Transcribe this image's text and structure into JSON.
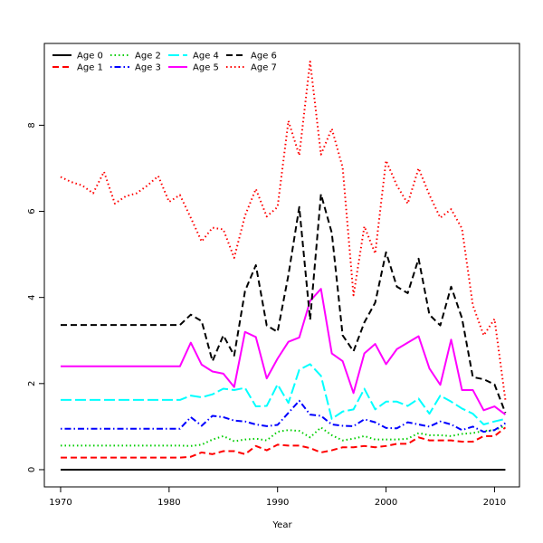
{
  "chart_data": {
    "type": "line",
    "title": "",
    "xlabel": "Year",
    "ylabel": "",
    "xlim": [
      1968.5,
      2012.3
    ],
    "ylim": [
      -0.4,
      9.9
    ],
    "xticks": [
      1970,
      1980,
      1990,
      2000,
      2010
    ],
    "yticks": [
      0,
      2,
      4,
      6,
      8
    ],
    "grid": false,
    "legend_position": "top-left",
    "x": [
      1970,
      1971,
      1972,
      1973,
      1974,
      1975,
      1976,
      1977,
      1978,
      1979,
      1980,
      1981,
      1982,
      1983,
      1984,
      1985,
      1986,
      1987,
      1988,
      1989,
      1990,
      1991,
      1992,
      1993,
      1994,
      1995,
      1996,
      1997,
      1998,
      1999,
      2000,
      2001,
      2002,
      2003,
      2004,
      2005,
      2006,
      2007,
      2008,
      2009,
      2010,
      2011
    ],
    "series": [
      {
        "name": "Age 0",
        "color": "#000000",
        "dash": "solid",
        "values": [
          0,
          0,
          0,
          0,
          0,
          0,
          0,
          0,
          0,
          0,
          0,
          0,
          0,
          0,
          0,
          0,
          0,
          0,
          0,
          0,
          0,
          0,
          0,
          0,
          0,
          0,
          0,
          0,
          0,
          0,
          0,
          0,
          0,
          0,
          0,
          0,
          0,
          0,
          0,
          0,
          0,
          0
        ]
      },
      {
        "name": "Age 1",
        "color": "#ff0000",
        "dash": "dashed",
        "values": [
          0.28,
          0.28,
          0.28,
          0.28,
          0.28,
          0.28,
          0.28,
          0.28,
          0.28,
          0.28,
          0.28,
          0.28,
          0.3,
          0.4,
          0.36,
          0.43,
          0.43,
          0.36,
          0.55,
          0.45,
          0.58,
          0.56,
          0.56,
          0.5,
          0.4,
          0.45,
          0.52,
          0.52,
          0.55,
          0.52,
          0.55,
          0.6,
          0.6,
          0.75,
          0.68,
          0.68,
          0.68,
          0.65,
          0.65,
          0.78,
          0.78,
          0.98
        ]
      },
      {
        "name": "Age 2",
        "color": "#00cd00",
        "dash": "dotted",
        "values": [
          0.56,
          0.56,
          0.56,
          0.56,
          0.56,
          0.56,
          0.56,
          0.56,
          0.56,
          0.56,
          0.56,
          0.56,
          0.55,
          0.58,
          0.7,
          0.78,
          0.66,
          0.7,
          0.72,
          0.68,
          0.88,
          0.92,
          0.9,
          0.75,
          0.98,
          0.8,
          0.68,
          0.72,
          0.78,
          0.7,
          0.7,
          0.7,
          0.72,
          0.85,
          0.8,
          0.8,
          0.78,
          0.83,
          0.85,
          0.9,
          0.92,
          1.02
        ]
      },
      {
        "name": "Age 3",
        "color": "#0000ff",
        "dash": "dashdot",
        "values": [
          0.95,
          0.95,
          0.95,
          0.95,
          0.95,
          0.95,
          0.95,
          0.95,
          0.95,
          0.95,
          0.95,
          0.95,
          1.22,
          1.02,
          1.25,
          1.22,
          1.14,
          1.12,
          1.05,
          1.01,
          1.04,
          1.32,
          1.6,
          1.28,
          1.25,
          1.05,
          1.02,
          1.01,
          1.17,
          1.1,
          0.97,
          0.96,
          1.1,
          1.05,
          1.0,
          1.12,
          1.05,
          0.92,
          1.0,
          0.88,
          0.92,
          1.08
        ]
      },
      {
        "name": "Age 4",
        "color": "#00ffff",
        "dash": "longdash",
        "values": [
          1.62,
          1.62,
          1.62,
          1.62,
          1.62,
          1.62,
          1.62,
          1.62,
          1.62,
          1.62,
          1.62,
          1.62,
          1.72,
          1.68,
          1.75,
          1.88,
          1.85,
          1.9,
          1.47,
          1.48,
          1.98,
          1.55,
          2.32,
          2.45,
          2.18,
          1.18,
          1.35,
          1.4,
          1.88,
          1.4,
          1.58,
          1.58,
          1.48,
          1.65,
          1.3,
          1.72,
          1.58,
          1.42,
          1.3,
          1.05,
          1.12,
          1.18
        ]
      },
      {
        "name": "Age 5",
        "color": "#ff00ff",
        "dash": "solid",
        "values": [
          2.4,
          2.4,
          2.4,
          2.4,
          2.4,
          2.4,
          2.4,
          2.4,
          2.4,
          2.4,
          2.4,
          2.4,
          2.95,
          2.44,
          2.28,
          2.23,
          1.92,
          3.2,
          3.08,
          2.12,
          2.58,
          2.97,
          3.07,
          3.92,
          4.2,
          2.7,
          2.52,
          1.78,
          2.7,
          2.92,
          2.45,
          2.8,
          2.95,
          3.1,
          2.35,
          1.97,
          3.02,
          1.85,
          1.85,
          1.38,
          1.47,
          1.28
        ]
      },
      {
        "name": "Age 6",
        "color": "#000000",
        "dash": "dashed",
        "values": [
          3.36,
          3.36,
          3.36,
          3.36,
          3.36,
          3.36,
          3.36,
          3.36,
          3.36,
          3.36,
          3.36,
          3.36,
          3.6,
          3.45,
          2.52,
          3.12,
          2.65,
          4.15,
          4.75,
          3.35,
          3.2,
          4.52,
          6.1,
          3.48,
          6.4,
          5.5,
          3.12,
          2.75,
          3.42,
          3.88,
          5.05,
          4.25,
          4.1,
          4.9,
          3.6,
          3.35,
          4.25,
          3.52,
          2.15,
          2.1,
          1.98,
          1.32
        ]
      },
      {
        "name": "Age 7",
        "color": "#ff0000",
        "dash": "dotted",
        "values": [
          6.8,
          6.68,
          6.6,
          6.42,
          6.92,
          6.18,
          6.35,
          6.42,
          6.6,
          6.82,
          6.22,
          6.38,
          5.85,
          5.3,
          5.62,
          5.58,
          4.92,
          5.9,
          6.52,
          5.88,
          6.1,
          8.1,
          7.3,
          9.48,
          7.32,
          7.92,
          7.02,
          4.05,
          5.65,
          5.02,
          7.18,
          6.6,
          6.18,
          7.0,
          6.38,
          5.85,
          6.05,
          5.6,
          3.82,
          3.12,
          3.5,
          1.62
        ]
      }
    ]
  }
}
